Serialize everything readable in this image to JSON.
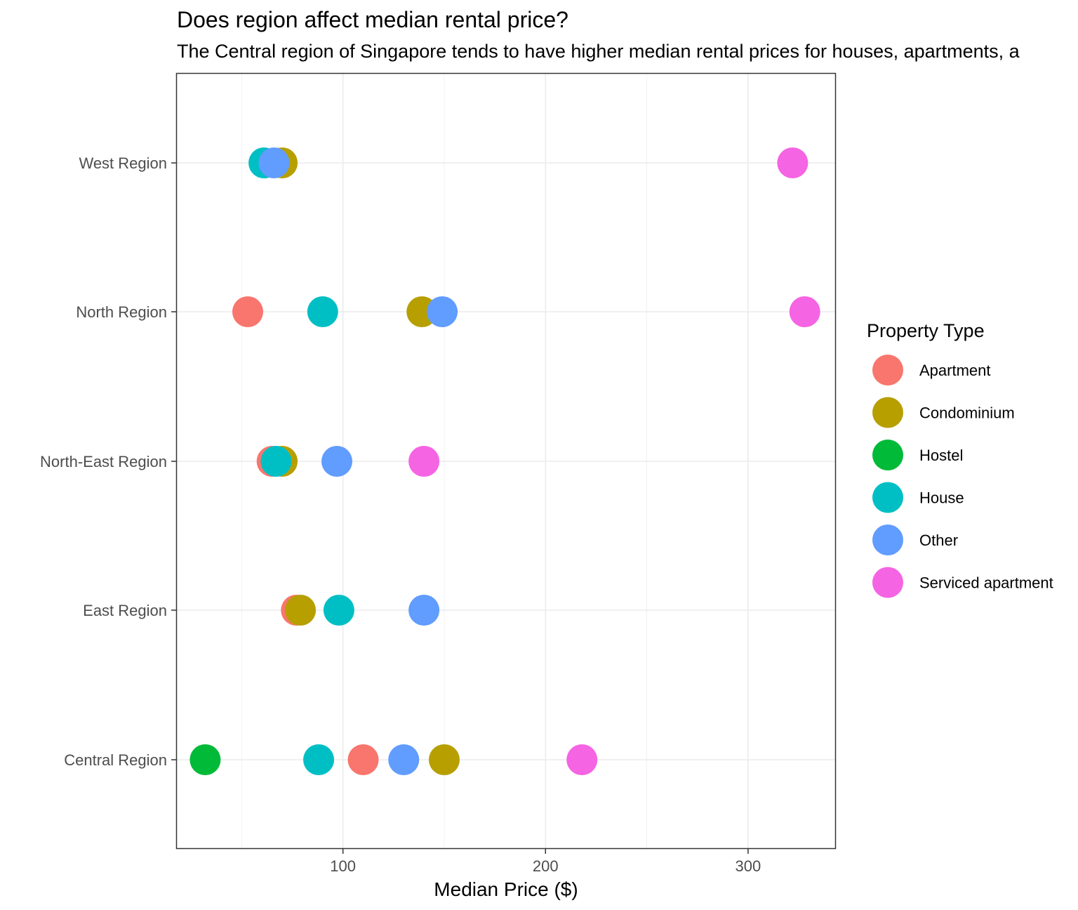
{
  "chart_data": {
    "type": "scatter",
    "title": "Does region affect median rental price?",
    "subtitle": "The Central region of Singapore tends to have higher median rental prices for houses, apartments, a",
    "xlabel": "Median Price ($)",
    "ylabel": "",
    "xlim": [
      18,
      343
    ],
    "x_ticks": [
      100,
      200,
      300
    ],
    "categories": [
      "West Region",
      "North Region",
      "North-East Region",
      "East Region",
      "Central Region"
    ],
    "grid": true,
    "legend": {
      "title": "Property Type",
      "position": "right",
      "entries": [
        {
          "name": "Apartment",
          "color": "#F8766D"
        },
        {
          "name": "Condominium",
          "color": "#B79F00"
        },
        {
          "name": "Hostel",
          "color": "#00BA38"
        },
        {
          "name": "House",
          "color": "#00BFC4"
        },
        {
          "name": "Other",
          "color": "#619CFF"
        },
        {
          "name": "Serviced apartment",
          "color": "#F564E3"
        }
      ]
    },
    "series": [
      {
        "name": "Apartment",
        "points": [
          {
            "region": "North Region",
            "x": 53
          },
          {
            "region": "North-East Region",
            "x": 65
          },
          {
            "region": "East Region",
            "x": 77
          },
          {
            "region": "Central Region",
            "x": 110
          }
        ]
      },
      {
        "name": "Condominium",
        "points": [
          {
            "region": "West Region",
            "x": 70
          },
          {
            "region": "North Region",
            "x": 139
          },
          {
            "region": "North-East Region",
            "x": 70
          },
          {
            "region": "East Region",
            "x": 79
          },
          {
            "region": "Central Region",
            "x": 150
          }
        ]
      },
      {
        "name": "Hostel",
        "points": [
          {
            "region": "Central Region",
            "x": 32
          }
        ]
      },
      {
        "name": "House",
        "points": [
          {
            "region": "West Region",
            "x": 61
          },
          {
            "region": "North Region",
            "x": 90
          },
          {
            "region": "North-East Region",
            "x": 67
          },
          {
            "region": "East Region",
            "x": 98
          },
          {
            "region": "Central Region",
            "x": 88
          }
        ]
      },
      {
        "name": "Other",
        "points": [
          {
            "region": "West Region",
            "x": 66
          },
          {
            "region": "North Region",
            "x": 149
          },
          {
            "region": "North-East Region",
            "x": 97
          },
          {
            "region": "East Region",
            "x": 140
          },
          {
            "region": "Central Region",
            "x": 130
          }
        ]
      },
      {
        "name": "Serviced apartment",
        "points": [
          {
            "region": "West Region",
            "x": 322
          },
          {
            "region": "North Region",
            "x": 328
          },
          {
            "region": "North-East Region",
            "x": 140
          },
          {
            "region": "Central Region",
            "x": 218
          }
        ]
      }
    ]
  }
}
